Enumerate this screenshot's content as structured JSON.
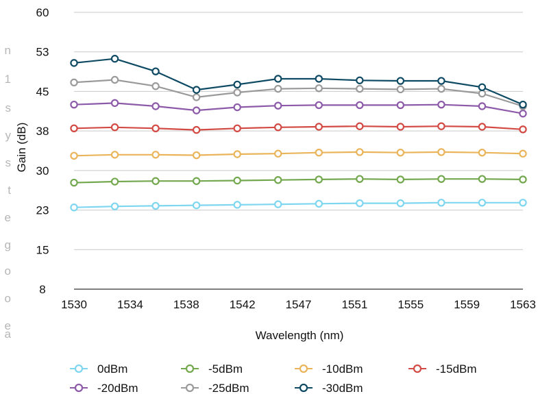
{
  "chart_data": {
    "type": "line",
    "title": "",
    "xlabel": "Wavelength (nm)",
    "ylabel": "Gain (dB)",
    "categories": [
      "1530",
      "1534",
      "1538",
      "1542",
      "1547",
      "1551",
      "1555",
      "1559",
      "1563"
    ],
    "x": [
      1530,
      1533,
      1536,
      1539,
      1542,
      1545,
      1548,
      1551,
      1554,
      1557,
      1560,
      1563
    ],
    "xlim": [
      1530,
      1563
    ],
    "y_ticks": [
      "8",
      "15",
      "23",
      "30",
      "38",
      "45",
      "53",
      "60"
    ],
    "ylim": [
      7.5,
      60
    ],
    "grid": true,
    "legend_position": "bottom",
    "series": [
      {
        "name": "0dBm",
        "color": "#7fd6f0",
        "values": [
          23.0,
          23.2,
          23.3,
          23.4,
          23.5,
          23.6,
          23.7,
          23.8,
          23.8,
          23.9,
          23.9,
          23.9
        ]
      },
      {
        "name": "-5dBm",
        "color": "#73a84f",
        "values": [
          27.7,
          27.9,
          28.0,
          28.0,
          28.1,
          28.2,
          28.3,
          28.4,
          28.3,
          28.4,
          28.4,
          28.3
        ]
      },
      {
        "name": "-10dBm",
        "color": "#eab45a",
        "values": [
          32.8,
          33.0,
          33.0,
          32.9,
          33.1,
          33.2,
          33.4,
          33.5,
          33.4,
          33.5,
          33.4,
          33.2
        ]
      },
      {
        "name": "-15dBm",
        "color": "#d24a43",
        "values": [
          38.0,
          38.2,
          38.0,
          37.7,
          38.0,
          38.2,
          38.3,
          38.4,
          38.3,
          38.4,
          38.3,
          37.8
        ]
      },
      {
        "name": "-20dBm",
        "color": "#8c5aa8",
        "values": [
          42.5,
          42.8,
          42.2,
          41.4,
          42.0,
          42.3,
          42.4,
          42.4,
          42.4,
          42.5,
          42.2,
          40.8
        ]
      },
      {
        "name": "-25dBm",
        "color": "#9a9a9a",
        "values": [
          46.7,
          47.2,
          46.0,
          43.9,
          44.8,
          45.5,
          45.6,
          45.5,
          45.4,
          45.5,
          44.6,
          42.2
        ]
      },
      {
        "name": "-30dBm",
        "color": "#0e4a63",
        "values": [
          50.4,
          51.2,
          48.8,
          45.3,
          46.3,
          47.4,
          47.4,
          47.1,
          47.0,
          47.0,
          45.8,
          42.5
        ]
      }
    ]
  },
  "edge_fragments": [
    "n",
    "1",
    "s",
    "y",
    "s",
    "t",
    "e",
    "g",
    "o",
    "o",
    "e",
    "a"
  ]
}
